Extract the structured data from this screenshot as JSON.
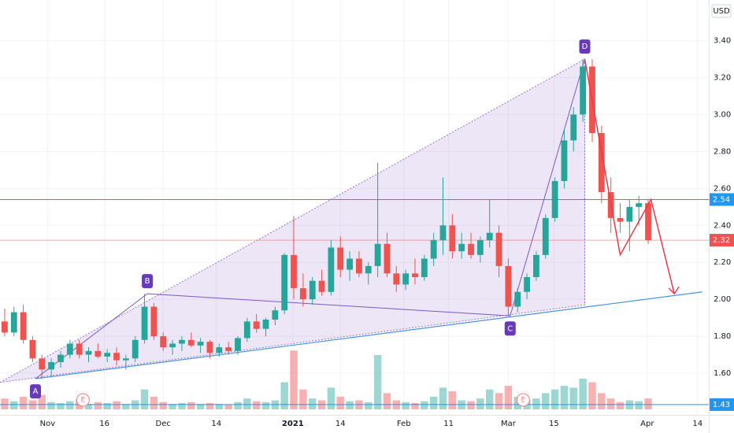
{
  "chart_data": {
    "type": "candlestick",
    "currency": "USD",
    "xlim": [
      0,
      76
    ],
    "ylim": [
      1.37,
      3.62
    ],
    "yticks": [
      {
        "value": 1.6,
        "label": "1.60"
      },
      {
        "value": 1.8,
        "label": "1.80"
      },
      {
        "value": 2.0,
        "label": "2.00"
      },
      {
        "value": 2.2,
        "label": "2.20"
      },
      {
        "value": 2.4,
        "label": "2.40"
      },
      {
        "value": 2.6,
        "label": "2.60"
      },
      {
        "value": 2.8,
        "label": "2.80"
      },
      {
        "value": 3.0,
        "label": "3.00"
      },
      {
        "value": 3.2,
        "label": "3.20"
      },
      {
        "value": 3.4,
        "label": "3.40"
      }
    ],
    "xticks": [
      {
        "value": 4.6,
        "label": "Nov"
      },
      {
        "value": 10.7,
        "label": "16"
      },
      {
        "value": 17,
        "label": "Dec"
      },
      {
        "value": 22.7,
        "label": "14"
      },
      {
        "value": 30.9,
        "label": "2021"
      },
      {
        "value": 36,
        "label": "14"
      },
      {
        "value": 42.8,
        "label": "Feb"
      },
      {
        "value": 47.6,
        "label": "11"
      },
      {
        "value": 54,
        "label": "Mar"
      },
      {
        "value": 58.9,
        "label": "15"
      },
      {
        "value": 68.9,
        "label": "Apr"
      },
      {
        "value": 74.3,
        "label": "14"
      }
    ],
    "grid": true,
    "up_color": "#26a69a",
    "down_color": "#ef5350",
    "open": [
      1.88,
      1.82,
      1.93,
      1.78,
      1.68,
      1.62,
      1.66,
      1.7,
      1.76,
      1.7,
      1.72,
      1.69,
      1.71,
      1.67,
      1.68,
      1.78,
      1.96,
      1.8,
      1.74,
      1.76,
      1.78,
      1.75,
      1.77,
      1.71,
      1.74,
      1.72,
      1.79,
      1.88,
      1.84,
      1.89,
      1.94,
      2.24,
      2.06,
      2.0,
      2.1,
      2.04,
      2.28,
      2.16,
      2.22,
      2.14,
      2.18,
      2.3,
      2.14,
      2.08,
      2.14,
      2.12,
      2.22,
      2.32,
      2.4,
      2.26,
      2.3,
      2.24,
      2.32,
      2.36,
      2.18,
      1.96,
      2.04,
      2.12,
      2.24,
      2.44,
      2.64,
      2.86,
      3.0,
      3.26,
      2.9,
      2.58,
      2.44,
      2.42,
      2.5,
      2.52
    ],
    "high": [
      1.95,
      1.96,
      1.97,
      1.8,
      1.7,
      1.68,
      1.72,
      1.78,
      1.78,
      1.74,
      1.76,
      1.73,
      1.74,
      1.7,
      1.8,
      2.03,
      1.98,
      1.82,
      1.78,
      1.8,
      1.82,
      1.79,
      1.78,
      1.76,
      1.77,
      1.8,
      1.9,
      1.92,
      1.9,
      1.96,
      2.25,
      2.45,
      2.14,
      2.12,
      2.16,
      2.32,
      2.34,
      2.26,
      2.26,
      2.2,
      2.74,
      2.36,
      2.18,
      2.16,
      2.22,
      2.24,
      2.36,
      2.66,
      2.46,
      2.36,
      2.36,
      2.34,
      2.54,
      2.4,
      2.22,
      2.06,
      2.14,
      2.26,
      2.46,
      2.66,
      2.92,
      3.04,
      3.3,
      3.3,
      2.94,
      2.66,
      2.52,
      2.54,
      2.56,
      2.54
    ],
    "low": [
      1.8,
      1.8,
      1.76,
      1.66,
      1.57,
      1.58,
      1.63,
      1.68,
      1.68,
      1.66,
      1.68,
      1.66,
      1.64,
      1.62,
      1.66,
      1.76,
      1.78,
      1.72,
      1.7,
      1.72,
      1.74,
      1.71,
      1.68,
      1.69,
      1.7,
      1.7,
      1.77,
      1.82,
      1.8,
      1.86,
      1.92,
      2.0,
      1.96,
      1.97,
      2.02,
      2.02,
      2.12,
      2.1,
      2.12,
      2.08,
      2.12,
      2.12,
      2.04,
      2.05,
      2.08,
      2.1,
      2.18,
      2.24,
      2.22,
      2.22,
      2.22,
      2.2,
      2.28,
      2.12,
      1.91,
      1.93,
      2.0,
      2.1,
      2.22,
      2.42,
      2.6,
      2.8,
      2.96,
      2.85,
      2.52,
      2.36,
      2.36,
      2.26,
      2.4,
      2.3
    ],
    "close": [
      1.82,
      1.93,
      1.78,
      1.68,
      1.62,
      1.66,
      1.7,
      1.76,
      1.7,
      1.72,
      1.69,
      1.71,
      1.67,
      1.68,
      1.78,
      1.96,
      1.8,
      1.74,
      1.76,
      1.78,
      1.75,
      1.77,
      1.71,
      1.74,
      1.72,
      1.79,
      1.88,
      1.84,
      1.89,
      1.94,
      2.24,
      2.06,
      2.0,
      2.1,
      2.04,
      2.28,
      2.16,
      2.22,
      2.14,
      2.18,
      2.3,
      2.14,
      2.08,
      2.14,
      2.12,
      2.22,
      2.32,
      2.4,
      2.26,
      2.3,
      2.24,
      2.32,
      2.36,
      2.18,
      1.96,
      2.04,
      2.12,
      2.24,
      2.44,
      2.64,
      2.86,
      3.0,
      3.26,
      2.9,
      2.58,
      2.44,
      2.42,
      2.5,
      2.52,
      2.32
    ],
    "volume": [
      12,
      9,
      14,
      10,
      16,
      8,
      7,
      9,
      11,
      6,
      8,
      7,
      9,
      6,
      10,
      22,
      14,
      8,
      6,
      7,
      8,
      6,
      7,
      6,
      5,
      8,
      12,
      9,
      8,
      10,
      30,
      65,
      22,
      12,
      10,
      24,
      14,
      9,
      10,
      8,
      60,
      18,
      10,
      8,
      7,
      9,
      14,
      24,
      20,
      10,
      9,
      12,
      22,
      18,
      26,
      14,
      10,
      12,
      18,
      22,
      26,
      24,
      34,
      30,
      18,
      12,
      8,
      10,
      9,
      12
    ],
    "vlim": [
      0,
      200
    ],
    "levels": [
      {
        "value": 2.54,
        "label": "2.54",
        "color": "#2196f3"
      },
      {
        "value": 2.32,
        "label": "2.32",
        "color": "#ef5350"
      },
      {
        "value": 1.43,
        "label": "1.43",
        "color": "#2196f3"
      }
    ],
    "pattern": {
      "points": [
        {
          "x": 3.3,
          "y": 1.57,
          "label": "A"
        },
        {
          "x": 15.3,
          "y": 2.03,
          "label": "B"
        },
        {
          "x": 54.2,
          "y": 1.91,
          "label": "C"
        },
        {
          "x": 62.2,
          "y": 3.3,
          "label": "D"
        }
      ],
      "fill": [
        [
          -0.5,
          1.55
        ],
        [
          62.2,
          3.3
        ],
        [
          62.2,
          1.97
        ]
      ],
      "trend": [
        [
          3.3,
          1.57
        ],
        [
          74.8,
          2.04
        ]
      ],
      "projection": [
        [
          62.2,
          3.3
        ],
        [
          66,
          2.24
        ],
        [
          69.3,
          2.54
        ],
        [
          71.8,
          2.03
        ]
      ]
    },
    "events": [
      {
        "x": 8.4,
        "label": "E"
      },
      {
        "x": 55.6,
        "label": "E"
      }
    ]
  }
}
